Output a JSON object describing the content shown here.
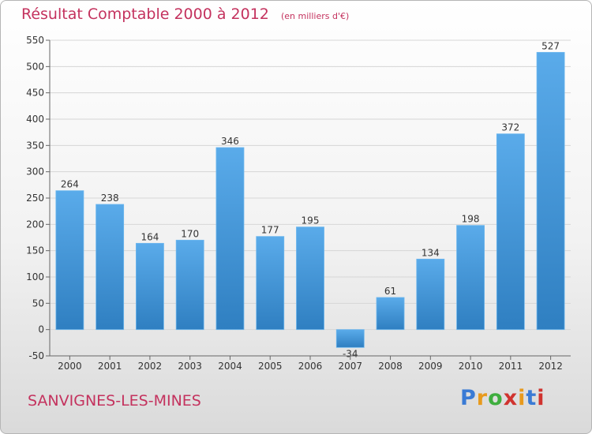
{
  "title": "Résultat Comptable 2000 à 2012",
  "subtitle": "(en milliers d'€)",
  "place": "SANVIGNES-LES-MINES",
  "logo": {
    "letters": [
      "P",
      "r",
      "o",
      "x",
      "i",
      "t",
      "i"
    ],
    "colors": [
      "#3a7bd5",
      "#e89a1d",
      "#3fae3f",
      "#d0332f",
      "#e89a1d",
      "#3a7bd5",
      "#d0332f"
    ]
  },
  "colors": {
    "bar_top": "#5aabea",
    "bar_bottom": "#2f7fc1",
    "accent": "#c4325e"
  },
  "chart_data": {
    "type": "bar",
    "categories": [
      "2000",
      "2001",
      "2002",
      "2003",
      "2004",
      "2005",
      "2006",
      "2007",
      "2008",
      "2009",
      "2010",
      "2011",
      "2012"
    ],
    "values": [
      264,
      238,
      164,
      170,
      346,
      177,
      195,
      -34,
      61,
      134,
      198,
      372,
      527
    ],
    "labels": [
      "264",
      "238",
      "164",
      "170",
      "346",
      "177",
      "195",
      "-34",
      "61",
      "134",
      "198",
      "372",
      "527"
    ],
    "title": "Résultat Comptable 2000 à 2012",
    "ylim": [
      -50,
      550
    ],
    "yticks": [
      -50,
      0,
      50,
      100,
      150,
      200,
      250,
      300,
      350,
      400,
      450,
      500,
      550
    ],
    "grid": true
  }
}
